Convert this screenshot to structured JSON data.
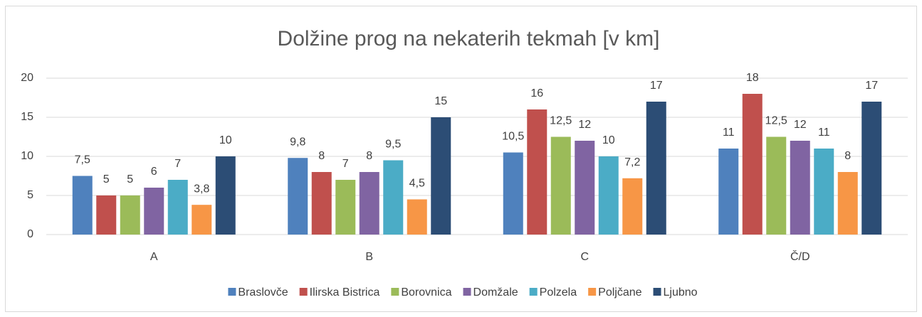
{
  "chart_data": {
    "type": "bar",
    "title": "Dolžine prog na nekaterih tekmah [v km]",
    "categories": [
      "A",
      "B",
      "C",
      "Č/D"
    ],
    "series": [
      {
        "name": "Braslovče",
        "color": "#4f81bd",
        "values": [
          7.5,
          9.8,
          10.5,
          11
        ],
        "value_labels": [
          "7,5",
          "9,8",
          "10,5",
          "11"
        ]
      },
      {
        "name": "Ilirska Bistrica",
        "color": "#c0504d",
        "values": [
          5,
          8,
          16,
          18
        ],
        "value_labels": [
          "5",
          "8",
          "16",
          "18"
        ]
      },
      {
        "name": "Borovnica",
        "color": "#9bbb59",
        "values": [
          5,
          7,
          12.5,
          12.5
        ],
        "value_labels": [
          "5",
          "7",
          "12,5",
          "12,5"
        ]
      },
      {
        "name": "Domžale",
        "color": "#8064a2",
        "values": [
          6,
          8,
          12,
          12
        ],
        "value_labels": [
          "6",
          "8",
          "12",
          "12"
        ]
      },
      {
        "name": "Polzela",
        "color": "#4bacc6",
        "values": [
          7,
          9.5,
          10,
          11
        ],
        "value_labels": [
          "7",
          "9,5",
          "10",
          "11"
        ]
      },
      {
        "name": "Poljčane",
        "color": "#f79646",
        "values": [
          3.8,
          4.5,
          7.2,
          8
        ],
        "value_labels": [
          "3,8",
          "4,5",
          "7,2",
          "8"
        ]
      },
      {
        "name": "Ljubno",
        "color": "#2c4d75",
        "values": [
          10,
          15,
          17,
          17
        ],
        "value_labels": [
          "10",
          "15",
          "17",
          "17"
        ]
      }
    ],
    "ylim": [
      0,
      20
    ],
    "yticks": [
      0,
      5,
      10,
      15,
      20
    ],
    "grid": true,
    "legend": "bottom"
  }
}
